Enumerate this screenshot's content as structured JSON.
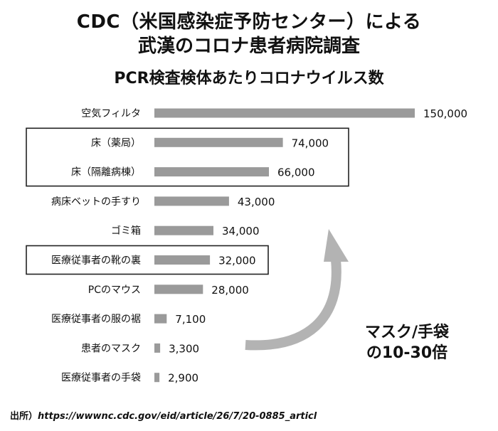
{
  "header": {
    "title_line1": "CDC（米国感染症予防センター）による",
    "title_line2": "武漢のコロナ患者病院調査",
    "subtitle": "PCR検査検体あたりコロナウイルス数"
  },
  "annotation": {
    "line1": "マスク/手袋",
    "line2": "の10-30倍"
  },
  "source": {
    "label": "出所）",
    "url": "https://wwwnc.cdc.gov/eid/article/26/7/20-0885_articl"
  },
  "colors": {
    "bar": "#9a9a9a",
    "arrow": "#b3b3b3"
  },
  "chart_data": {
    "type": "bar",
    "orientation": "horizontal",
    "title": "PCR検査検体あたりコロナウイルス数",
    "categories": [
      "空気フィルタ",
      "床（薬局）",
      "床（隔離病棟）",
      "病床ベットの手すり",
      "ゴミ箱",
      "医療従事者の靴の裏",
      "PCのマウス",
      "医療従事者の服の裾",
      "患者のマスク",
      "医療従事者の手袋"
    ],
    "values": [
      150000,
      74000,
      66000,
      43000,
      34000,
      32000,
      28000,
      7100,
      3300,
      2900
    ],
    "value_labels": [
      "150,000",
      "74,000",
      "66,000",
      "43,000",
      "34,000",
      "32,000",
      "28,000",
      "7,100",
      "3,300",
      "2,900"
    ],
    "highlighted_groups": [
      [
        1,
        2
      ],
      [
        5
      ]
    ],
    "xlim": [
      0,
      150000
    ]
  }
}
